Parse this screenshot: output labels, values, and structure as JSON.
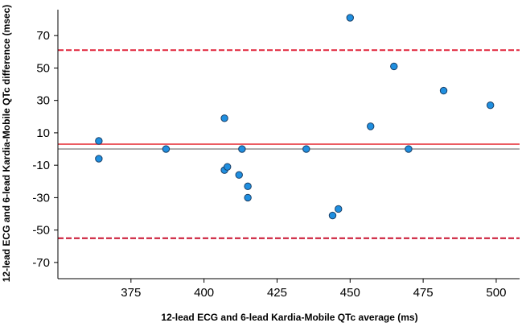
{
  "chart_data": {
    "type": "scatter",
    "title": "",
    "xlabel": "12-lead ECG and 6-lead Kardia-Mobile QTc average (ms)",
    "ylabel": "12-lead ECG and 6-lead Kardia-Mobile QTc difference (msec)",
    "xlim": [
      350,
      508
    ],
    "ylim": [
      -80,
      86
    ],
    "x_ticks": [
      375,
      400,
      425,
      450,
      475,
      500
    ],
    "y_ticks": [
      70,
      50,
      30,
      10,
      -10,
      -30,
      -50,
      -70
    ],
    "grid": false,
    "points": [
      {
        "x": 364,
        "y": 5
      },
      {
        "x": 364,
        "y": -6
      },
      {
        "x": 387,
        "y": 0
      },
      {
        "x": 407,
        "y": 19
      },
      {
        "x": 407,
        "y": -13
      },
      {
        "x": 408,
        "y": -11
      },
      {
        "x": 412,
        "y": -16
      },
      {
        "x": 413,
        "y": 0
      },
      {
        "x": 415,
        "y": -23
      },
      {
        "x": 415,
        "y": -30
      },
      {
        "x": 435,
        "y": 0
      },
      {
        "x": 444,
        "y": -41
      },
      {
        "x": 446,
        "y": -37
      },
      {
        "x": 450,
        "y": 81
      },
      {
        "x": 457,
        "y": 14
      },
      {
        "x": 465,
        "y": 51
      },
      {
        "x": 470,
        "y": 0
      },
      {
        "x": 482,
        "y": 36
      },
      {
        "x": 498,
        "y": 27
      }
    ],
    "reference_lines": [
      {
        "y": 0,
        "style": "solid",
        "color": "#7a7a7a"
      },
      {
        "y": 3,
        "style": "solid",
        "color": "#e8454b"
      },
      {
        "y": 61,
        "style": "dashed",
        "color": "#e0243a"
      },
      {
        "y": -55,
        "style": "dashed",
        "color": "#c8102e"
      }
    ],
    "colors": {
      "point_fill": "#1f8fe0",
      "point_stroke": "#1a3f66",
      "axis": "#000000"
    }
  }
}
